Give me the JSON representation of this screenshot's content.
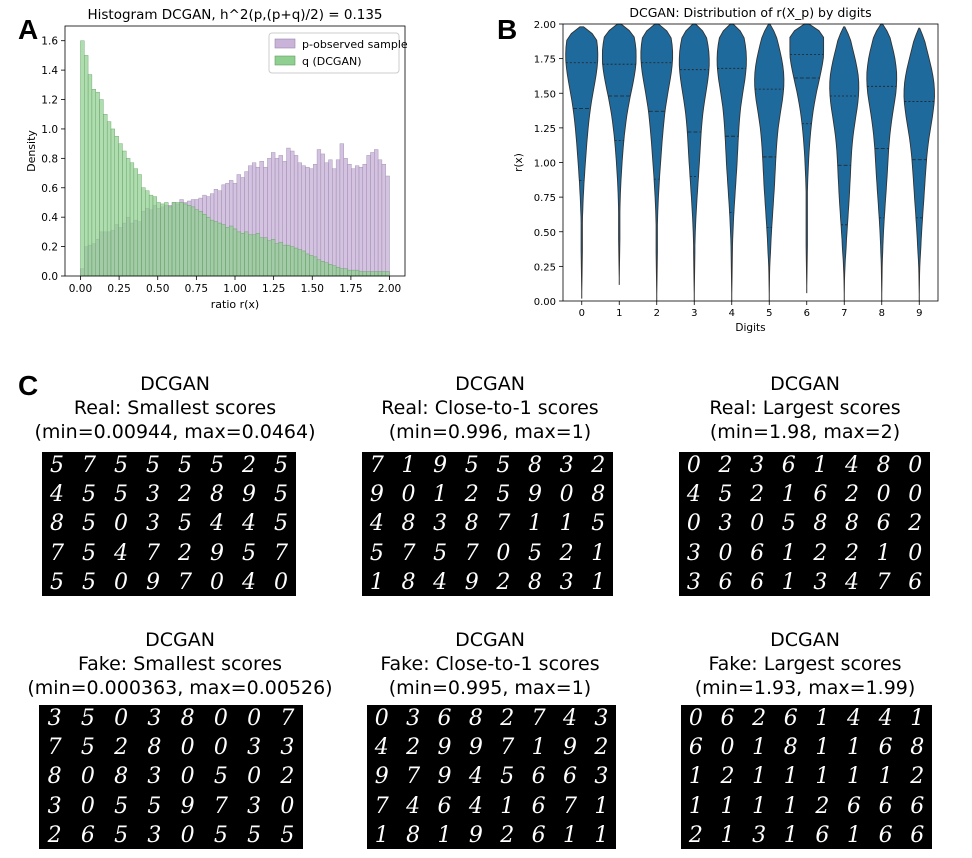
{
  "panels": {
    "a": {
      "letter": "A"
    },
    "b": {
      "letter": "B"
    },
    "c": {
      "letter": "C"
    }
  },
  "chart_data": [
    {
      "type": "histogram",
      "title": "Histogram DCGAN, h^2(p,(p+q)/2) = 0.135",
      "xlabel": "ratio r(x)",
      "ylabel": "Density",
      "xlim": [
        -0.1,
        2.1
      ],
      "ylim": [
        0,
        1.7
      ],
      "xticks": [
        "0.00",
        "0.25",
        "0.50",
        "0.75",
        "1.00",
        "1.25",
        "1.50",
        "1.75",
        "2.00"
      ],
      "yticks": [
        "0.0",
        "0.2",
        "0.4",
        "0.6",
        "0.8",
        "1.0",
        "1.2",
        "1.4",
        "1.6"
      ],
      "legend": [
        "p-observed sample",
        "q (DCGAN)"
      ],
      "legend_position": "top-right",
      "bin_width": 0.04,
      "series": [
        {
          "name": "p-observed sample",
          "color": "#c9b3d9",
          "values": [
            0.05,
            0.2,
            0.21,
            0.22,
            0.25,
            0.3,
            0.3,
            0.3,
            0.31,
            0.35,
            0.33,
            0.36,
            0.4,
            0.36,
            0.38,
            0.37,
            0.44,
            0.46,
            0.45,
            0.48,
            0.46,
            0.47,
            0.48,
            0.48,
            0.5,
            0.49,
            0.52,
            0.5,
            0.51,
            0.52,
            0.52,
            0.53,
            0.55,
            0.54,
            0.56,
            0.59,
            0.58,
            0.62,
            0.63,
            0.65,
            0.63,
            0.69,
            0.67,
            0.71,
            0.75,
            0.77,
            0.74,
            0.78,
            0.74,
            0.8,
            0.84,
            0.8,
            0.82,
            0.78,
            0.87,
            0.85,
            0.82,
            0.77,
            0.75,
            0.74,
            0.73,
            0.76,
            0.86,
            0.83,
            0.77,
            0.79,
            0.73,
            0.79,
            0.9,
            0.8,
            0.76,
            0.73,
            0.75,
            0.74,
            0.76,
            0.82,
            0.84,
            0.86,
            0.79,
            0.76,
            0.68
          ]
        },
        {
          "name": "q (DCGAN)",
          "color": "#8fcf8f",
          "values": [
            1.6,
            1.5,
            1.37,
            1.27,
            1.25,
            1.2,
            1.1,
            1.05,
            1.0,
            0.95,
            0.9,
            0.85,
            0.8,
            0.77,
            0.73,
            0.69,
            0.6,
            0.58,
            0.55,
            0.54,
            0.5,
            0.49,
            0.5,
            0.47,
            0.5,
            0.5,
            0.5,
            0.49,
            0.48,
            0.47,
            0.45,
            0.44,
            0.42,
            0.4,
            0.38,
            0.37,
            0.36,
            0.35,
            0.33,
            0.34,
            0.32,
            0.3,
            0.29,
            0.3,
            0.28,
            0.28,
            0.29,
            0.26,
            0.26,
            0.24,
            0.25,
            0.22,
            0.23,
            0.21,
            0.21,
            0.2,
            0.19,
            0.18,
            0.17,
            0.15,
            0.14,
            0.13,
            0.11,
            0.1,
            0.09,
            0.08,
            0.07,
            0.06,
            0.05,
            0.05,
            0.04,
            0.04,
            0.04,
            0.03,
            0.03,
            0.03,
            0.03,
            0.03,
            0.03,
            0.03,
            0.03
          ]
        }
      ]
    },
    {
      "type": "violin",
      "title": "DCGAN: Distribution of r(X_p) by digits",
      "xlabel": "Digits",
      "ylabel": "r(x)",
      "ylim": [
        0,
        2.0
      ],
      "yticks": [
        "0.00",
        "0.25",
        "0.50",
        "0.75",
        "1.00",
        "1.25",
        "1.50",
        "1.75",
        "2.00"
      ],
      "categories": [
        "0",
        "1",
        "2",
        "3",
        "4",
        "5",
        "6",
        "7",
        "8",
        "9"
      ],
      "color": "#1f6a9c",
      "quartiles": [
        [
          0.87,
          1.39,
          1.72
        ],
        [
          1.16,
          1.48,
          1.71
        ],
        [
          0.88,
          1.37,
          1.72
        ],
        [
          0.9,
          1.22,
          1.67
        ],
        [
          0.64,
          1.19,
          1.68
        ],
        [
          0.53,
          1.04,
          1.53
        ],
        [
          1.28,
          1.61,
          1.78
        ],
        [
          0.55,
          0.98,
          1.48
        ],
        [
          0.6,
          1.1,
          1.55
        ],
        [
          0.6,
          1.02,
          1.44
        ]
      ],
      "ranges": [
        [
          0.02,
          1.98
        ],
        [
          0.12,
          2.0
        ],
        [
          0.0,
          2.0
        ],
        [
          0.0,
          2.0
        ],
        [
          0.0,
          2.0
        ],
        [
          0.0,
          2.0
        ],
        [
          0.06,
          2.0
        ],
        [
          0.0,
          1.98
        ],
        [
          0.0,
          2.0
        ],
        [
          0.0,
          1.97
        ]
      ]
    }
  ],
  "sample_grids": [
    {
      "id": "real-smallest",
      "title_model": "DCGAN",
      "title_kind": "Real: Smallest scores",
      "title_range": "(min=0.00944, max=0.0464)",
      "rows": [
        "57555525",
        "45532895",
        "85035445",
        "7547295 7",
        "55097040"
      ]
    },
    {
      "id": "real-close",
      "title_model": "DCGAN",
      "title_kind": "Real: Close-to-1 scores",
      "title_range": "(min=0.996, max=1)",
      "rows": [
        "71955832",
        "90125908",
        "48387115",
        "57570521",
        "18492831"
      ]
    },
    {
      "id": "real-largest",
      "title_model": "DCGAN",
      "title_kind": "Real: Largest scores",
      "title_range": "(min=1.98, max=2)",
      "rows": [
        "02361480",
        "45216200",
        "03058862",
        "30612210",
        "36613476"
      ]
    },
    {
      "id": "fake-smallest",
      "title_model": "DCGAN",
      "title_kind": "Fake: Smallest scores",
      "title_range": "(min=0.000363, max=0.00526)",
      "rows": [
        "35038007",
        "75280033",
        "80830502",
        "30559730",
        "26530555"
      ]
    },
    {
      "id": "fake-close",
      "title_model": "DCGAN",
      "title_kind": "Fake: Close-to-1 scores",
      "title_range": "(min=0.995, max=1)",
      "rows": [
        "03682743",
        "42997192",
        "97945663",
        "74641671",
        "18192611"
      ]
    },
    {
      "id": "fake-largest",
      "title_model": "DCGAN",
      "title_kind": "Fake: Largest scores",
      "title_range": "(min=1.93, max=1.99)",
      "rows": [
        "06261441",
        "60181168",
        "12111112",
        "11112666",
        "21316166"
      ]
    }
  ]
}
